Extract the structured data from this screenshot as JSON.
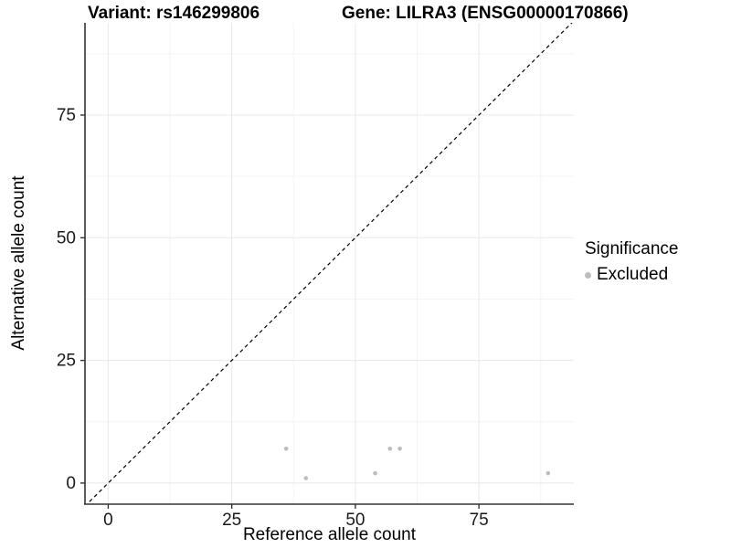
{
  "header": {
    "variant_title": "Variant: rs146299806",
    "gene_title": "Gene: LILRA3 (ENSG00000170866)"
  },
  "chart_data": {
    "type": "scatter",
    "title": "",
    "xlabel": "Reference allele count",
    "ylabel": "Alternative allele count",
    "xlim": [
      -4.7,
      94.2
    ],
    "ylim": [
      -4.3,
      93.8
    ],
    "x_ticks": [
      0,
      25,
      50,
      75
    ],
    "y_ticks": [
      0,
      25,
      50,
      75
    ],
    "x_minor_ticks": [
      12.5,
      37.5,
      62.5,
      87.5
    ],
    "y_minor_ticks": [
      12.5,
      37.5,
      62.5,
      87.5
    ],
    "grid": true,
    "identity_line": {
      "style": "dashed",
      "equation": "y = x"
    },
    "series": [
      {
        "name": "Excluded",
        "color": "#bdbdbd",
        "points": [
          {
            "x": 36,
            "y": 7
          },
          {
            "x": 40,
            "y": 1
          },
          {
            "x": 54,
            "y": 2
          },
          {
            "x": 57,
            "y": 7
          },
          {
            "x": 59,
            "y": 7
          },
          {
            "x": 89,
            "y": 2
          }
        ]
      }
    ],
    "legend": {
      "title": "Significance",
      "position": "right",
      "items": [
        {
          "label": "Excluded",
          "color": "#bdbdbd"
        }
      ]
    }
  },
  "colors": {
    "point": "#bdbdbd",
    "grid_major": "#e8e8e8",
    "grid_minor": "#f3f3f3",
    "axis_line": "#333333",
    "tick_text": "#1a1a1a",
    "identity_line": "#000000",
    "background": "#ffffff"
  }
}
